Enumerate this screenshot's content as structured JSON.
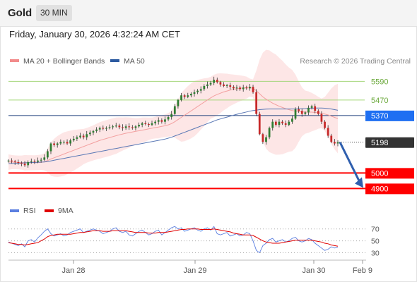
{
  "header": {
    "symbol": "Gold",
    "timeframe": "30 MIN",
    "datetime": "Friday, January 30, 2026 4:32:24 AM CET"
  },
  "legend": {
    "items": [
      {
        "label": "MA 20 + Bollinger Bands",
        "color": "#f28b8b"
      },
      {
        "label": "MA 50",
        "color": "#2c5aa0"
      }
    ],
    "copyright": "Research © 2026 Trading Central"
  },
  "rsi_legend": {
    "items": [
      {
        "label": "RSI",
        "color": "#5b7fe0"
      },
      {
        "label": "9MA",
        "color": "#e00000"
      }
    ]
  },
  "colors": {
    "up": "#2e7d32",
    "down": "#c62828",
    "resistance": "#a5d67a",
    "pivot": "#1e3f7a",
    "support": "#ff0000",
    "current": "#333333",
    "target": "#2f5fae",
    "band_fill": "#fde2e2",
    "ma20": "#f3a0a0",
    "ma50": "#5a78b5",
    "rsi": "#5b7fe0",
    "rsi_ma": "#e00000",
    "pivot_tag": "#1e6ff2"
  },
  "chart_data": [
    {
      "type": "candlestick",
      "title": "Gold",
      "xlabel": "",
      "ylabel": "",
      "ylim": [
        4820,
        5660
      ],
      "x_ticks": [
        "Jan 28",
        "Jan 29",
        "Jan 30",
        "Feb 9"
      ],
      "levels": [
        {
          "value": 5590,
          "label": "5590",
          "kind": "resistance"
        },
        {
          "value": 5470,
          "label": "5470",
          "kind": "resistance"
        },
        {
          "value": 5370,
          "label": "5370",
          "kind": "pivot"
        },
        {
          "value": 5198,
          "label": "5198",
          "kind": "current"
        },
        {
          "value": 5000,
          "label": "5000",
          "kind": "support"
        },
        {
          "value": 4900,
          "label": "4900",
          "kind": "support"
        }
      ],
      "close": [
        5080,
        5075,
        5070,
        5065,
        5060,
        5050,
        5070,
        5075,
        5072,
        5080,
        5085,
        5100,
        5140,
        5190,
        5180,
        5190,
        5200,
        5200,
        5190,
        5210,
        5220,
        5230,
        5240,
        5230,
        5250,
        5260,
        5270,
        5280,
        5290,
        5285,
        5290,
        5295,
        5300,
        5305,
        5295,
        5290,
        5300,
        5295,
        5290,
        5300,
        5310,
        5320,
        5315,
        5310,
        5320,
        5330,
        5340,
        5330,
        5345,
        5360,
        5380,
        5430,
        5470,
        5500,
        5490,
        5500,
        5510,
        5520,
        5530,
        5540,
        5560,
        5570,
        5580,
        5600,
        5585,
        5570,
        5560,
        5565,
        5555,
        5545,
        5550,
        5540,
        5550,
        5545,
        5555,
        5520,
        5380,
        5250,
        5200,
        5230,
        5290,
        5330,
        5310,
        5330,
        5320,
        5310,
        5330,
        5350,
        5410,
        5400,
        5380,
        5390,
        5420,
        5430,
        5400,
        5380,
        5330,
        5290,
        5240,
        5200,
        5190,
        5198
      ],
      "ma20": [
        5070,
        5070,
        5069,
        5068,
        5067,
        5066,
        5066,
        5066,
        5066,
        5067,
        5069,
        5072,
        5080,
        5090,
        5098,
        5106,
        5114,
        5122,
        5130,
        5138,
        5146,
        5154,
        5162,
        5170,
        5178,
        5186,
        5194,
        5202,
        5210,
        5216,
        5222,
        5228,
        5234,
        5240,
        5246,
        5251,
        5256,
        5260,
        5264,
        5268,
        5272,
        5276,
        5280,
        5284,
        5288,
        5292,
        5296,
        5300,
        5304,
        5310,
        5318,
        5330,
        5344,
        5358,
        5372,
        5386,
        5400,
        5414,
        5428,
        5442,
        5456,
        5470,
        5484,
        5496,
        5506,
        5514,
        5522,
        5528,
        5534,
        5538,
        5542,
        5545,
        5548,
        5550,
        5550,
        5545,
        5530,
        5510,
        5490,
        5475,
        5462,
        5450,
        5440,
        5430,
        5422,
        5414,
        5408,
        5402,
        5398,
        5396,
        5394,
        5392,
        5392,
        5392,
        5390,
        5388,
        5384,
        5380,
        5374,
        5366,
        5358,
        5350
      ],
      "ma50": [
        5060,
        5061,
        5062,
        5063,
        5064,
        5065,
        5066,
        5067,
        5068,
        5069,
        5070,
        5071,
        5074,
        5078,
        5082,
        5086,
        5090,
        5094,
        5098,
        5102,
        5106,
        5110,
        5114,
        5118,
        5122,
        5126,
        5130,
        5134,
        5138,
        5142,
        5146,
        5150,
        5154,
        5158,
        5162,
        5166,
        5170,
        5174,
        5178,
        5182,
        5186,
        5190,
        5194,
        5198,
        5202,
        5206,
        5210,
        5214,
        5218,
        5224,
        5230,
        5238,
        5246,
        5254,
        5262,
        5270,
        5278,
        5286,
        5294,
        5302,
        5310,
        5318,
        5326,
        5334,
        5342,
        5348,
        5354,
        5360,
        5366,
        5372,
        5378,
        5383,
        5388,
        5393,
        5398,
        5402,
        5405,
        5408,
        5410,
        5411,
        5412,
        5412,
        5412,
        5412,
        5412,
        5412,
        5412,
        5412,
        5412,
        5413,
        5414,
        5415,
        5416,
        5417,
        5418,
        5418,
        5418,
        5417,
        5415,
        5412,
        5408,
        5404
      ]
    },
    {
      "type": "line",
      "title": "RSI",
      "ylim": [
        20,
        85
      ],
      "y_ticks": [
        70,
        50,
        30
      ],
      "series": [
        {
          "name": "RSI",
          "values": [
            48,
            46,
            44,
            42,
            45,
            40,
            50,
            52,
            48,
            55,
            60,
            66,
            70,
            62,
            58,
            60,
            62,
            58,
            60,
            64,
            66,
            68,
            70,
            64,
            66,
            68,
            70,
            68,
            66,
            62,
            64,
            66,
            70,
            72,
            66,
            64,
            66,
            60,
            58,
            62,
            66,
            68,
            64,
            60,
            62,
            66,
            68,
            60,
            64,
            68,
            72,
            74,
            70,
            72,
            66,
            68,
            70,
            72,
            68,
            66,
            70,
            72,
            68,
            74,
            62,
            60,
            62,
            64,
            58,
            60,
            62,
            58,
            60,
            64,
            62,
            50,
            34,
            30,
            42,
            46,
            52,
            54,
            48,
            50,
            52,
            48,
            50,
            54,
            56,
            50,
            48,
            50,
            54,
            52,
            46,
            42,
            38,
            34,
            36,
            40,
            38,
            39
          ]
        },
        {
          "name": "9MA",
          "values": [
            47,
            46,
            45,
            44,
            44,
            43,
            44,
            45,
            46,
            47,
            50,
            53,
            57,
            59,
            60,
            61,
            61,
            61,
            61,
            61,
            62,
            63,
            64,
            64,
            65,
            66,
            67,
            67,
            67,
            66,
            66,
            66,
            67,
            67,
            67,
            67,
            67,
            66,
            65,
            64,
            64,
            64,
            64,
            63,
            63,
            63,
            64,
            64,
            64,
            65,
            66,
            67,
            68,
            69,
            69,
            70,
            70,
            70,
            70,
            69,
            69,
            69,
            69,
            70,
            69,
            68,
            67,
            66,
            65,
            63,
            62,
            61,
            60,
            60,
            60,
            59,
            56,
            53,
            50,
            48,
            47,
            46,
            46,
            46,
            47,
            48,
            49,
            50,
            51,
            51,
            51,
            51,
            51,
            51,
            50,
            49,
            48,
            46,
            45,
            43,
            42,
            41
          ]
        }
      ]
    }
  ]
}
